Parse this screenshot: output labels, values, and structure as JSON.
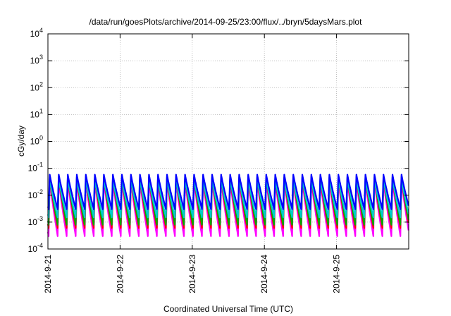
{
  "chart_data": {
    "type": "line",
    "title": "/data/run/goesPlots/archive/2014-09-25/23:00/flux/../bryn/5daysMars.plot",
    "xlabel": "Coordinated Universal Time (UTC)",
    "ylabel": "cGy/day",
    "y_scale": "log",
    "ylim": [
      0.0001,
      10000
    ],
    "xlim": [
      "2014-09-21",
      "2014-09-26"
    ],
    "grid": true,
    "x_ticks": [
      "2014-9-21",
      "2014-9-22",
      "2014-9-23",
      "2014-9-24",
      "2014-9-25"
    ],
    "y_ticks": [
      {
        "base": "10",
        "exp": "-4"
      },
      {
        "base": "10",
        "exp": "-3"
      },
      {
        "base": "10",
        "exp": "-2"
      },
      {
        "base": "10",
        "exp": "-1"
      },
      {
        "base": "10",
        "exp": "0"
      },
      {
        "base": "10",
        "exp": "1"
      },
      {
        "base": "10",
        "exp": "2"
      },
      {
        "base": "10",
        "exp": "3"
      },
      {
        "base": "10",
        "exp": "4"
      }
    ],
    "pattern": {
      "description_of_values": "Periodic sawtooth dose-rate traces, about 8 cycles per day; each cycle rises sharply to a peak and decays",
      "cycles_per_day": 8,
      "series": [
        {
          "color": "#ff00ff",
          "peak": 0.035,
          "trough": 0.0003
        },
        {
          "color": "#ff0000",
          "peak": 0.045,
          "trough": 0.0006
        },
        {
          "color": "#00aa00",
          "peak": 0.05,
          "trough": 0.0008
        },
        {
          "color": "#00cccc",
          "peak": 0.04,
          "trough": 0.0015
        },
        {
          "color": "#0000ff",
          "peak": 0.06,
          "trough": 0.003
        }
      ]
    }
  }
}
